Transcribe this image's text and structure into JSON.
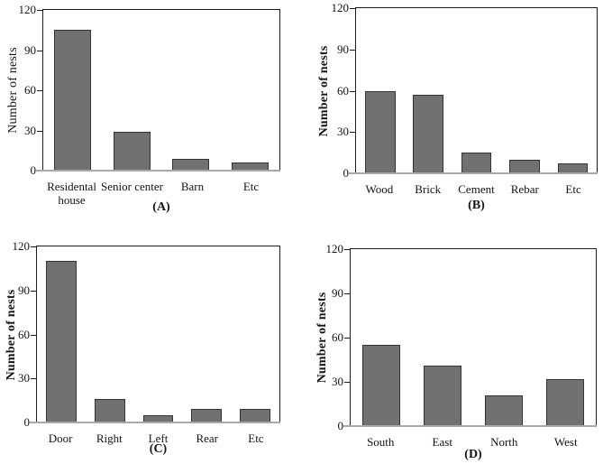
{
  "figure": {
    "background": "#ffffff",
    "colors": {
      "bar_fill": "#717171",
      "bar_border": "#333333",
      "frame": "#1d1d1d",
      "baseline": "#a9a9a9",
      "text": "#141414"
    }
  },
  "chart_data": [
    {
      "id": "A",
      "type": "bar",
      "panel_label": "(A)",
      "ylabel": "Number of nests",
      "ylabel_bold": false,
      "ylim": [
        0,
        120
      ],
      "yticks": [
        0,
        30,
        60,
        90,
        120
      ],
      "categories": [
        "Residental\nhouse",
        "Senior center",
        "Barn",
        "Etc"
      ],
      "values": [
        105,
        29,
        9,
        6
      ],
      "grid": false,
      "legend": "none"
    },
    {
      "id": "B",
      "type": "bar",
      "panel_label": "(B)",
      "ylabel": "Number of nests",
      "ylabel_bold": true,
      "ylim": [
        0,
        120
      ],
      "yticks": [
        0,
        30,
        60,
        90,
        120
      ],
      "categories": [
        "Wood",
        "Brick",
        "Cement",
        "Rebar",
        "Etc"
      ],
      "values": [
        60,
        57,
        15,
        10,
        7
      ],
      "grid": false,
      "legend": "none"
    },
    {
      "id": "C",
      "type": "bar",
      "panel_label": "(C)",
      "ylabel": "Number of nests",
      "ylabel_bold": true,
      "ylim": [
        0,
        120
      ],
      "yticks": [
        0,
        30,
        60,
        90,
        120
      ],
      "categories": [
        "Door",
        "Right",
        "Left",
        "Rear",
        "Etc"
      ],
      "values": [
        110,
        16,
        5,
        9,
        9
      ],
      "grid": false,
      "legend": "none"
    },
    {
      "id": "D",
      "type": "bar",
      "panel_label": "(D)",
      "ylabel": "Number of nests",
      "ylabel_bold": true,
      "ylim": [
        0,
        120
      ],
      "yticks": [
        0,
        30,
        60,
        90,
        120
      ],
      "categories": [
        "South",
        "East",
        "North",
        "West"
      ],
      "values": [
        55,
        41,
        21,
        32
      ],
      "grid": false,
      "legend": "none"
    }
  ]
}
